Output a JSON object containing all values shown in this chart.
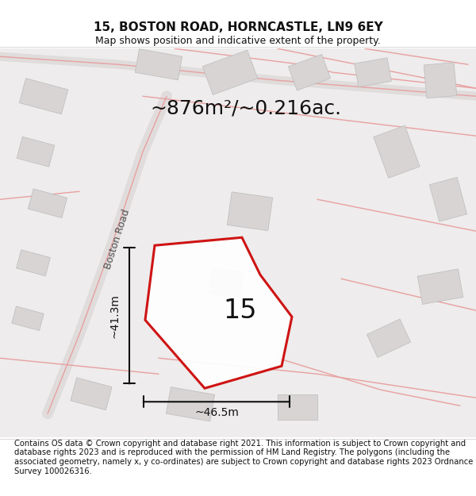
{
  "title": "15, BOSTON ROAD, HORNCASTLE, LN9 6EY",
  "subtitle": "Map shows position and indicative extent of the property.",
  "area_text": "~876m²/~0.216ac.",
  "number_label": "15",
  "width_label": "~46.5m",
  "height_label": "~41.3m",
  "road_label": "Boston Road",
  "footer": "Contains OS data © Crown copyright and database right 2021. This information is subject to Crown copyright and database rights 2023 and is reproduced with the permission of HM Land Registry. The polygons (including the associated geometry, namely x, y co-ordinates) are subject to Crown copyright and database rights 2023 Ordnance Survey 100026316.",
  "map_bg": "#eeecec",
  "plot_fill": "#ffffff",
  "plot_stroke": "#cc0000",
  "road_color": "#e8a0a0",
  "building_color": "#d8d4d4",
  "title_fontsize": 11,
  "subtitle_fontsize": 9,
  "footer_fontsize": 7.2
}
